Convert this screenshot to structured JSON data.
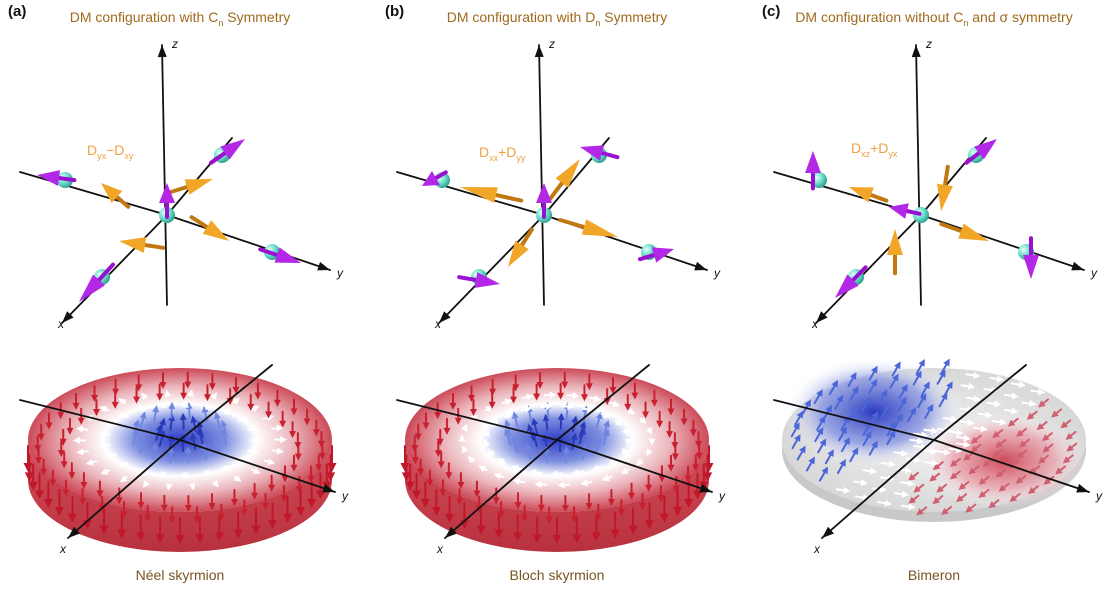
{
  "panels": [
    {
      "label": "(a)",
      "title": [
        {
          "text": "DM configuration with C"
        },
        {
          "text": "n",
          "sub": true
        },
        {
          "text": " Symmetry"
        }
      ],
      "formula": [
        {
          "text": "D"
        },
        {
          "text": "yx",
          "sub": true
        },
        {
          "text": "−D"
        },
        {
          "text": "xy",
          "sub": true
        }
      ],
      "top_axes": {
        "x": "x",
        "y": "y",
        "z": "z"
      },
      "bottom_axes": {
        "x": "x",
        "y": "y"
      },
      "caption": "Néel skyrmion"
    },
    {
      "label": "(b)",
      "title": [
        {
          "text": "DM configuration with D"
        },
        {
          "text": "n",
          "sub": true
        },
        {
          "text": " Symmetry"
        }
      ],
      "formula": [
        {
          "text": "D"
        },
        {
          "text": "xx",
          "sub": true
        },
        {
          "text": "+D"
        },
        {
          "text": "yy",
          "sub": true
        }
      ],
      "top_axes": {
        "x": "x",
        "y": "y",
        "z": "z"
      },
      "bottom_axes": {
        "x": "x",
        "y": "y"
      },
      "caption": "Bloch skyrmion"
    },
    {
      "label": "(c)",
      "title": [
        {
          "text": "DM configuration without C"
        },
        {
          "text": "n",
          "sub": true
        },
        {
          "text": " and σ symmetry"
        }
      ],
      "formula": [
        {
          "text": "D"
        },
        {
          "text": "xz",
          "sub": true
        },
        {
          "text": "+D"
        },
        {
          "text": "yx",
          "sub": true
        }
      ],
      "top_axes": {
        "x": "x",
        "y": "y",
        "z": "z"
      },
      "bottom_axes": {
        "x": "x",
        "y": "y"
      },
      "caption": "Bimeron"
    }
  ]
}
